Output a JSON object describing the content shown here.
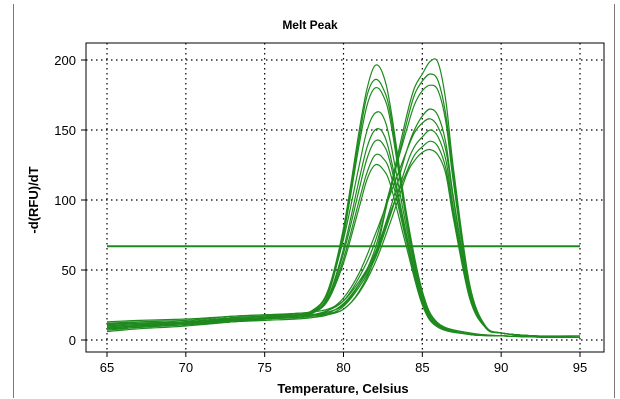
{
  "chart_data": {
    "type": "line",
    "title": "Melt Peak",
    "xlabel": "Temperature, Celsius",
    "ylabel": "-d(RFU)/dT",
    "xlim": [
      65,
      95
    ],
    "ylim": [
      0,
      200
    ],
    "x_ticks": [
      65,
      70,
      75,
      80,
      85,
      90,
      95
    ],
    "y_ticks": [
      0,
      50,
      100,
      150,
      200
    ],
    "grid": "dotted",
    "line_color": "#1e8a1e",
    "threshold": 67,
    "series": [
      {
        "x": [
          65,
          67,
          70,
          73,
          75,
          77,
          78,
          79,
          80,
          81,
          81.5,
          82,
          82.5,
          83,
          84,
          85,
          86,
          88,
          90,
          93,
          95
        ],
        "y": [
          10,
          11,
          12,
          15,
          16,
          17,
          20,
          35,
          80,
          150,
          180,
          196,
          190,
          165,
          90,
          35,
          12,
          5,
          3,
          2,
          2
        ]
      },
      {
        "x": [
          65,
          67,
          70,
          73,
          75,
          77,
          78,
          79,
          80,
          81,
          81.5,
          82,
          82.5,
          83,
          84,
          85,
          86,
          88,
          90,
          93,
          95
        ],
        "y": [
          9,
          10,
          12,
          14,
          16,
          18,
          20,
          34,
          78,
          145,
          175,
          186,
          180,
          160,
          88,
          34,
          12,
          5,
          3,
          2,
          2
        ]
      },
      {
        "x": [
          65,
          67,
          70,
          73,
          75,
          77,
          78,
          79,
          80,
          81,
          81.5,
          82,
          82.5,
          83,
          84,
          85,
          86,
          88,
          90,
          93,
          95
        ],
        "y": [
          8,
          10,
          11,
          14,
          15,
          17,
          19,
          32,
          75,
          140,
          168,
          180,
          175,
          155,
          85,
          32,
          11,
          4,
          3,
          2,
          2
        ]
      },
      {
        "x": [
          65,
          67,
          70,
          73,
          75,
          77,
          78,
          79,
          80,
          81,
          81.5,
          82,
          82.5,
          83,
          84,
          85,
          86,
          88,
          90,
          93,
          95
        ],
        "y": [
          12,
          12,
          13,
          16,
          17,
          19,
          21,
          34,
          72,
          125,
          150,
          162,
          160,
          140,
          80,
          30,
          11,
          4,
          3,
          2,
          2
        ]
      },
      {
        "x": [
          65,
          67,
          70,
          73,
          75,
          77,
          78,
          79,
          80,
          81,
          81.5,
          82,
          82.5,
          83,
          84,
          85,
          86,
          88,
          90,
          93,
          95
        ],
        "y": [
          7,
          9,
          11,
          13,
          15,
          17,
          19,
          30,
          65,
          115,
          138,
          150,
          148,
          130,
          75,
          28,
          10,
          4,
          3,
          2,
          2
        ]
      },
      {
        "x": [
          65,
          67,
          70,
          73,
          75,
          77,
          78,
          79,
          80,
          81,
          81.5,
          82,
          82.5,
          83,
          84,
          85,
          86,
          88,
          90,
          93,
          95
        ],
        "y": [
          11,
          12,
          13,
          15,
          16,
          18,
          20,
          30,
          62,
          108,
          130,
          142,
          140,
          125,
          72,
          27,
          10,
          4,
          3,
          2,
          2
        ]
      },
      {
        "x": [
          65,
          67,
          70,
          73,
          75,
          77,
          78,
          79,
          80,
          81,
          81.5,
          82,
          82.5,
          83,
          84,
          85,
          86,
          88,
          90,
          93,
          95
        ],
        "y": [
          10,
          11,
          12,
          14,
          16,
          18,
          20,
          29,
          58,
          100,
          120,
          132,
          130,
          118,
          70,
          26,
          10,
          4,
          3,
          2,
          2
        ]
      },
      {
        "x": [
          65,
          67,
          70,
          73,
          75,
          77,
          78,
          79,
          80,
          81,
          81.5,
          82,
          82.5,
          83,
          84,
          85,
          86,
          88,
          90,
          93,
          95
        ],
        "y": [
          6,
          8,
          10,
          13,
          15,
          17,
          19,
          28,
          55,
          95,
          115,
          125,
          122,
          110,
          66,
          25,
          9,
          4,
          3,
          2,
          2
        ]
      },
      {
        "x": [
          65,
          67,
          70,
          73,
          75,
          77,
          78,
          79,
          80,
          81,
          82,
          83,
          84,
          84.5,
          85,
          85.5,
          86,
          86.5,
          87,
          88,
          89,
          90,
          92,
          95
        ],
        "y": [
          12,
          13,
          14,
          17,
          18,
          18,
          18,
          19,
          22,
          35,
          60,
          110,
          160,
          180,
          190,
          199,
          198,
          170,
          120,
          40,
          10,
          5,
          3,
          2
        ]
      },
      {
        "x": [
          65,
          67,
          70,
          73,
          75,
          77,
          78,
          79,
          80,
          81,
          82,
          83,
          84,
          84.5,
          85,
          85.5,
          86,
          86.5,
          87,
          88,
          89,
          90,
          92,
          95
        ],
        "y": [
          11,
          12,
          13,
          16,
          17,
          17,
          18,
          20,
          25,
          40,
          65,
          108,
          155,
          175,
          185,
          190,
          185,
          160,
          115,
          38,
          10,
          5,
          3,
          2
        ]
      },
      {
        "x": [
          65,
          67,
          70,
          73,
          75,
          77,
          78,
          79,
          80,
          81,
          82,
          83,
          84,
          84.5,
          85,
          85.5,
          86,
          86.5,
          87,
          88,
          89,
          90,
          92,
          95
        ],
        "y": [
          10,
          11,
          13,
          15,
          16,
          17,
          18,
          21,
          28,
          45,
          70,
          110,
          150,
          168,
          178,
          182,
          178,
          155,
          110,
          36,
          9,
          5,
          3,
          2
        ]
      },
      {
        "x": [
          65,
          67,
          70,
          73,
          75,
          77,
          78,
          79,
          80,
          81,
          82,
          83,
          84,
          84.5,
          85,
          85.5,
          86,
          86.5,
          87,
          88,
          89,
          90,
          92,
          95
        ],
        "y": [
          13,
          14,
          15,
          17,
          18,
          19,
          20,
          22,
          28,
          42,
          62,
          95,
          135,
          150,
          160,
          165,
          160,
          140,
          100,
          35,
          10,
          5,
          3,
          3
        ]
      },
      {
        "x": [
          65,
          67,
          70,
          73,
          75,
          77,
          78,
          79,
          80,
          81,
          82,
          83,
          84,
          84.5,
          85,
          85.5,
          86,
          86.5,
          87,
          88,
          89,
          90,
          92,
          95
        ],
        "y": [
          9,
          10,
          12,
          14,
          16,
          17,
          18,
          21,
          30,
          48,
          75,
          105,
          135,
          148,
          155,
          158,
          152,
          135,
          98,
          34,
          9,
          5,
          3,
          2
        ]
      },
      {
        "x": [
          65,
          67,
          70,
          73,
          75,
          77,
          78,
          79,
          80,
          81,
          82,
          83,
          84,
          84.5,
          85,
          85.5,
          86,
          86.5,
          87,
          88,
          89,
          90,
          92,
          95
        ],
        "y": [
          8,
          9,
          11,
          13,
          14,
          15,
          16,
          18,
          24,
          38,
          58,
          90,
          125,
          138,
          145,
          150,
          145,
          128,
          92,
          32,
          9,
          5,
          3,
          2
        ]
      },
      {
        "x": [
          65,
          67,
          70,
          73,
          75,
          77,
          78,
          79,
          80,
          81,
          82,
          83,
          84,
          84.5,
          85,
          85.5,
          86,
          86.5,
          87,
          88,
          89,
          90,
          92,
          95
        ],
        "y": [
          12,
          12,
          13,
          15,
          16,
          16,
          17,
          19,
          26,
          40,
          60,
          92,
          120,
          132,
          138,
          142,
          138,
          122,
          88,
          30,
          9,
          5,
          3,
          2
        ]
      },
      {
        "x": [
          65,
          67,
          70,
          73,
          75,
          77,
          78,
          79,
          80,
          81,
          82,
          83,
          84,
          84.5,
          85,
          85.5,
          86,
          86.5,
          87,
          88,
          89,
          90,
          92,
          95
        ],
        "y": [
          10,
          11,
          12,
          14,
          15,
          16,
          17,
          18,
          22,
          34,
          55,
          85,
          118,
          128,
          134,
          136,
          132,
          118,
          85,
          30,
          9,
          5,
          3,
          2
        ]
      }
    ]
  }
}
